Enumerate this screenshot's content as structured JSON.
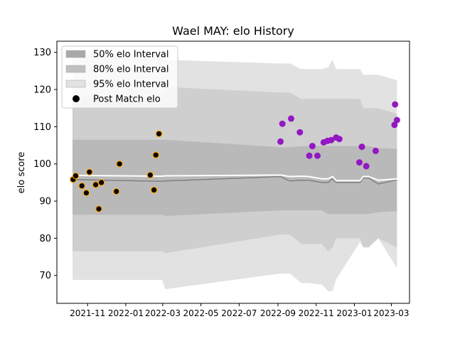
{
  "chart_data": {
    "type": "scatter",
    "title": "Wael MAY: elo History",
    "xlabel": "",
    "ylabel": "elo score",
    "xlim": [
      "2021-09-13",
      "2023-03-30"
    ],
    "ylim": [
      62.5,
      133
    ],
    "grid": false,
    "legend_position": "top-left",
    "x_ticks": [
      "2021-11",
      "2022-01",
      "2022-03",
      "2022-05",
      "2022-07",
      "2022-09",
      "2022-11",
      "2023-01",
      "2023-03"
    ],
    "y_ticks": [
      70,
      80,
      90,
      100,
      110,
      120,
      130
    ],
    "legend": [
      {
        "label": "50% elo Interval",
        "swatch": "band50"
      },
      {
        "label": "80% elo Interval",
        "swatch": "band80"
      },
      {
        "label": "95% elo Interval",
        "swatch": "band95"
      },
      {
        "label": "Post Match elo",
        "swatch": "marker"
      }
    ],
    "colors": {
      "band50": "#a8a8a8",
      "band80": "#bfbfbf",
      "band95": "#e2e2e2",
      "median_line": "#808080",
      "mean_line": "#ffffff",
      "first_season_face": "#000000",
      "first_season_edge": "#ffa500",
      "second_season_face": "#9417c4"
    },
    "bands": {
      "x": [
        "2021-10-08",
        "2022-02-28",
        "2022-03-05",
        "2022-09-05",
        "2022-09-20",
        "2022-10-08",
        "2022-10-20",
        "2022-11-10",
        "2022-11-20",
        "2022-11-27",
        "2022-12-03",
        "2023-01-10",
        "2023-01-15",
        "2023-01-24",
        "2023-02-08",
        "2023-03-10"
      ],
      "p025": [
        68.8,
        68.8,
        66.3,
        70.5,
        70.5,
        68.0,
        68.0,
        67.5,
        65.8,
        65.8,
        69.0,
        79.0,
        77.5,
        77.5,
        80.0,
        72.0
      ],
      "p10": [
        76.5,
        76.5,
        76.0,
        81.0,
        81.0,
        78.5,
        78.5,
        78.5,
        76.5,
        77.5,
        80.0,
        80.0,
        77.7,
        77.7,
        80.0,
        77.5
      ],
      "p25": [
        86.3,
        86.3,
        86.0,
        87.5,
        87.5,
        87.5,
        87.5,
        87.5,
        86.5,
        86.5,
        86.5,
        86.5,
        86.5,
        86.5,
        87.0,
        87.3
      ],
      "median": [
        95.8,
        95.3,
        95.4,
        96.6,
        95.4,
        95.6,
        95.6,
        95.0,
        95.0,
        96.0,
        95.0,
        95.0,
        96.2,
        96.2,
        94.6,
        95.7
      ],
      "mean": [
        96.9,
        96.7,
        96.8,
        97.0,
        96.6,
        96.7,
        96.6,
        96.0,
        96.0,
        96.6,
        95.5,
        95.5,
        96.6,
        96.6,
        95.6,
        96.0
      ],
      "p75": [
        106.5,
        106.5,
        106.5,
        104.5,
        104.5,
        104.8,
        104.8,
        104.8,
        104.8,
        104.8,
        104.8,
        104.8,
        104.8,
        104.8,
        104.3,
        104.0
      ],
      "p90": [
        118.0,
        118.0,
        120.7,
        119.2,
        119.2,
        117.5,
        117.5,
        117.5,
        117.5,
        117.5,
        117.5,
        117.5,
        115.0,
        115.0,
        115.0,
        113.5
      ],
      "p975": [
        129.7,
        129.7,
        128.0,
        127.0,
        127.0,
        125.5,
        125.5,
        125.5,
        126.0,
        128.0,
        125.5,
        125.5,
        124.0,
        124.0,
        124.0,
        122.5
      ]
    },
    "series": [
      {
        "name": "Post Match elo",
        "points": [
          [
            "2021-10-09",
            95.8
          ],
          [
            "2021-10-13",
            96.8
          ],
          [
            "2021-10-23",
            94.1
          ],
          [
            "2021-10-30",
            92.2
          ],
          [
            "2021-11-04",
            97.8
          ],
          [
            "2021-11-14",
            94.4
          ],
          [
            "2021-11-19",
            87.9
          ],
          [
            "2021-11-23",
            95.0
          ],
          [
            "2021-12-17",
            92.6
          ],
          [
            "2021-12-22",
            100.0
          ],
          [
            "2022-02-09",
            97.0
          ],
          [
            "2022-02-15",
            93.0
          ],
          [
            "2022-02-18",
            102.4
          ],
          [
            "2022-02-23",
            108.1
          ]
        ]
      },
      {
        "name": "Post Match elo",
        "points": [
          [
            "2022-09-05",
            106.0
          ],
          [
            "2022-09-08",
            110.8
          ],
          [
            "2022-09-22",
            112.2
          ],
          [
            "2022-10-06",
            108.5
          ],
          [
            "2022-10-21",
            102.2
          ],
          [
            "2022-10-26",
            104.8
          ],
          [
            "2022-11-03",
            102.2
          ],
          [
            "2022-11-13",
            105.8
          ],
          [
            "2022-11-19",
            106.2
          ],
          [
            "2022-11-25",
            106.4
          ],
          [
            "2022-12-03",
            107.1
          ],
          [
            "2022-12-08",
            106.7
          ],
          [
            "2023-01-09",
            100.4
          ],
          [
            "2023-01-13",
            104.6
          ],
          [
            "2023-01-20",
            99.4
          ],
          [
            "2023-02-04",
            103.5
          ],
          [
            "2023-03-06",
            110.5
          ],
          [
            "2023-03-07",
            116.0
          ],
          [
            "2023-03-10",
            111.8
          ]
        ]
      }
    ]
  }
}
